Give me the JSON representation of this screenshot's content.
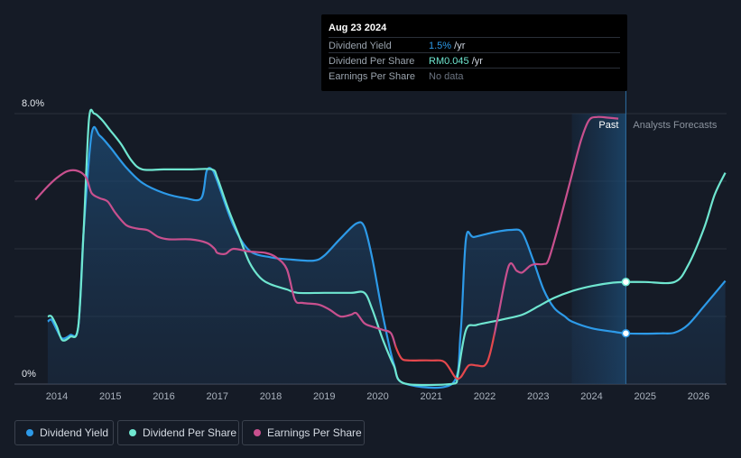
{
  "tooltip": {
    "date": "Aug 23 2024",
    "rows": [
      {
        "label": "Dividend Yield",
        "value": "1.5%",
        "unit": " /yr",
        "color": "#2d9ae8"
      },
      {
        "label": "Dividend Per Share",
        "value": "RM0.045",
        "unit": " /yr",
        "color": "#6fe6d0"
      },
      {
        "label": "Earnings Per Share",
        "value": "No data",
        "unit": "",
        "color": "#6b7380"
      }
    ]
  },
  "legend": [
    {
      "label": "Dividend Yield",
      "color": "#2d9ae8"
    },
    {
      "label": "Dividend Per Share",
      "color": "#6fe6d0"
    },
    {
      "label": "Earnings Per Share",
      "color": "#c8508e"
    }
  ],
  "chart_data": {
    "type": "line",
    "x_range": [
      2013.6,
      2026.5
    ],
    "y_range": [
      0,
      8.0
    ],
    "y_tick_labels": [
      "8.0%",
      "0%"
    ],
    "x_ticks": [
      "2014",
      "2015",
      "2016",
      "2017",
      "2018",
      "2019",
      "2020",
      "2021",
      "2022",
      "2023",
      "2024",
      "2025",
      "2026"
    ],
    "past_label": "Past",
    "forecast_label": "Analysts Forecasts",
    "past_end_x": 2024.64,
    "forecast_band_start_x": 2023.63,
    "grid": true,
    "series": [
      {
        "name": "Dividend Yield",
        "color": "#2d9ae8",
        "fill": true,
        "points": [
          [
            2013.83,
            1.85
          ],
          [
            2013.9,
            1.9
          ],
          [
            2014.0,
            1.6
          ],
          [
            2014.1,
            1.35
          ],
          [
            2014.25,
            1.45
          ],
          [
            2014.4,
            1.7
          ],
          [
            2014.5,
            4.5
          ],
          [
            2014.65,
            7.4
          ],
          [
            2014.8,
            7.35
          ],
          [
            2015.0,
            7.0
          ],
          [
            2015.3,
            6.4
          ],
          [
            2015.6,
            5.95
          ],
          [
            2016.0,
            5.65
          ],
          [
            2016.4,
            5.5
          ],
          [
            2016.7,
            5.5
          ],
          [
            2016.8,
            6.3
          ],
          [
            2016.9,
            6.35
          ],
          [
            2017.0,
            6.0
          ],
          [
            2017.3,
            4.7
          ],
          [
            2017.6,
            3.95
          ],
          [
            2018.0,
            3.75
          ],
          [
            2018.4,
            3.68
          ],
          [
            2018.8,
            3.65
          ],
          [
            2019.0,
            3.8
          ],
          [
            2019.3,
            4.3
          ],
          [
            2019.6,
            4.75
          ],
          [
            2019.75,
            4.65
          ],
          [
            2019.9,
            3.7
          ],
          [
            2020.1,
            2.0
          ],
          [
            2020.3,
            0.6
          ],
          [
            2020.5,
            0.02
          ],
          [
            2021.4,
            0.02
          ],
          [
            2021.55,
            1.5
          ],
          [
            2021.65,
            4.3
          ],
          [
            2021.8,
            4.35
          ],
          [
            2022.2,
            4.5
          ],
          [
            2022.5,
            4.56
          ],
          [
            2022.7,
            4.48
          ],
          [
            2022.9,
            3.7
          ],
          [
            2023.1,
            2.8
          ],
          [
            2023.3,
            2.25
          ],
          [
            2023.5,
            2.0
          ],
          [
            2023.63,
            1.85
          ],
          [
            2024.0,
            1.65
          ],
          [
            2024.4,
            1.55
          ],
          [
            2024.64,
            1.5
          ],
          [
            2025.0,
            1.49
          ],
          [
            2025.3,
            1.5
          ],
          [
            2025.55,
            1.52
          ],
          [
            2025.8,
            1.75
          ],
          [
            2026.1,
            2.3
          ],
          [
            2026.5,
            3.05
          ]
        ]
      },
      {
        "name": "Dividend Per Share",
        "color": "#6fe6d0",
        "fill": false,
        "points": [
          [
            2013.83,
            2.0
          ],
          [
            2013.9,
            2.0
          ],
          [
            2014.0,
            1.7
          ],
          [
            2014.1,
            1.3
          ],
          [
            2014.25,
            1.4
          ],
          [
            2014.4,
            1.7
          ],
          [
            2014.5,
            4.5
          ],
          [
            2014.6,
            7.8
          ],
          [
            2014.7,
            8.0
          ],
          [
            2014.85,
            7.8
          ],
          [
            2015.0,
            7.5
          ],
          [
            2015.2,
            7.1
          ],
          [
            2015.4,
            6.6
          ],
          [
            2015.6,
            6.35
          ],
          [
            2016.0,
            6.35
          ],
          [
            2016.5,
            6.35
          ],
          [
            2016.9,
            6.35
          ],
          [
            2017.0,
            6.1
          ],
          [
            2017.2,
            5.2
          ],
          [
            2017.4,
            4.4
          ],
          [
            2017.6,
            3.6
          ],
          [
            2017.8,
            3.15
          ],
          [
            2018.0,
            2.95
          ],
          [
            2018.3,
            2.8
          ],
          [
            2018.5,
            2.7
          ],
          [
            2019.0,
            2.7
          ],
          [
            2019.5,
            2.7
          ],
          [
            2019.75,
            2.7
          ],
          [
            2019.9,
            2.2
          ],
          [
            2020.1,
            1.3
          ],
          [
            2020.3,
            0.55
          ],
          [
            2020.5,
            0.02
          ],
          [
            2021.45,
            0.02
          ],
          [
            2021.5,
            0.3
          ],
          [
            2021.65,
            1.6
          ],
          [
            2021.85,
            1.75
          ],
          [
            2022.3,
            1.9
          ],
          [
            2022.7,
            2.05
          ],
          [
            2023.0,
            2.3
          ],
          [
            2023.3,
            2.55
          ],
          [
            2023.63,
            2.75
          ],
          [
            2024.0,
            2.9
          ],
          [
            2024.4,
            3.0
          ],
          [
            2024.64,
            3.02
          ],
          [
            2025.0,
            3.02
          ],
          [
            2025.55,
            3.02
          ],
          [
            2025.8,
            3.5
          ],
          [
            2026.1,
            4.6
          ],
          [
            2026.3,
            5.6
          ],
          [
            2026.5,
            6.25
          ]
        ]
      },
      {
        "name": "Earnings Per Share",
        "color": "#c8508e",
        "color_negative": "#e5484d",
        "fill": false,
        "points": [
          [
            2013.6,
            5.45
          ],
          [
            2013.8,
            5.8
          ],
          [
            2014.0,
            6.1
          ],
          [
            2014.2,
            6.3
          ],
          [
            2014.4,
            6.3
          ],
          [
            2014.55,
            6.1
          ],
          [
            2014.65,
            5.65
          ],
          [
            2014.8,
            5.5
          ],
          [
            2014.95,
            5.4
          ],
          [
            2015.1,
            5.05
          ],
          [
            2015.3,
            4.7
          ],
          [
            2015.5,
            4.6
          ],
          [
            2015.7,
            4.55
          ],
          [
            2015.9,
            4.35
          ],
          [
            2016.1,
            4.28
          ],
          [
            2016.5,
            4.28
          ],
          [
            2016.8,
            4.18
          ],
          [
            2016.95,
            4.0
          ],
          [
            2017.0,
            3.88
          ],
          [
            2017.15,
            3.85
          ],
          [
            2017.3,
            4.0
          ],
          [
            2017.6,
            3.92
          ],
          [
            2017.9,
            3.88
          ],
          [
            2018.1,
            3.75
          ],
          [
            2018.3,
            3.4
          ],
          [
            2018.45,
            2.5
          ],
          [
            2018.6,
            2.4
          ],
          [
            2018.9,
            2.35
          ],
          [
            2019.1,
            2.2
          ],
          [
            2019.3,
            2.0
          ],
          [
            2019.5,
            2.05
          ],
          [
            2019.6,
            2.1
          ],
          [
            2019.75,
            1.8
          ],
          [
            2019.9,
            1.7
          ],
          [
            2020.1,
            1.6
          ],
          [
            2020.25,
            1.5
          ],
          [
            2020.35,
            1.05
          ],
          [
            2020.45,
            0.75
          ],
          [
            2020.6,
            0.7
          ],
          [
            2021.0,
            0.7
          ],
          [
            2021.25,
            0.65
          ],
          [
            2021.45,
            0.2
          ],
          [
            2021.55,
            0.2
          ],
          [
            2021.7,
            0.55
          ],
          [
            2021.85,
            0.55
          ],
          [
            2022.0,
            0.55
          ],
          [
            2022.1,
            0.9
          ],
          [
            2022.25,
            2.0
          ],
          [
            2022.45,
            3.5
          ],
          [
            2022.6,
            3.35
          ],
          [
            2022.7,
            3.3
          ],
          [
            2022.85,
            3.5
          ],
          [
            2022.95,
            3.55
          ],
          [
            2023.1,
            3.55
          ],
          [
            2023.2,
            3.7
          ],
          [
            2023.4,
            4.8
          ],
          [
            2023.6,
            6.0
          ],
          [
            2023.8,
            7.2
          ],
          [
            2023.95,
            7.8
          ],
          [
            2024.1,
            7.9
          ],
          [
            2024.3,
            7.88
          ],
          [
            2024.5,
            7.85
          ]
        ]
      }
    ],
    "markers": [
      {
        "series": "Dividend Yield",
        "x": 2024.64,
        "y": 1.5
      },
      {
        "series": "Dividend Per Share",
        "x": 2024.64,
        "y": 3.02
      }
    ]
  }
}
